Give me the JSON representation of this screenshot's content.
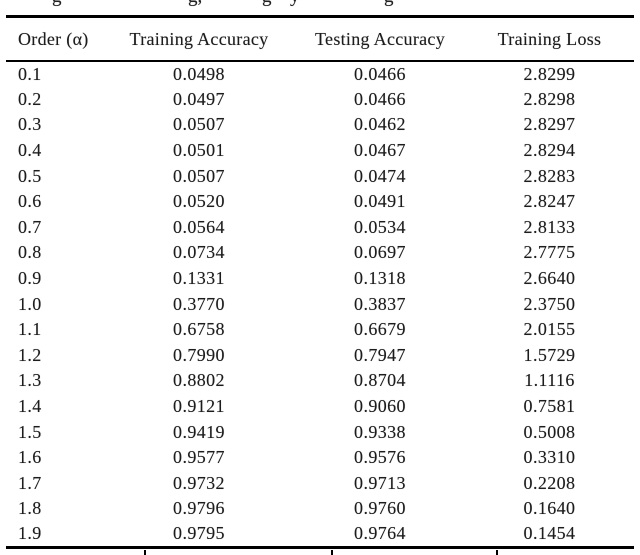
{
  "page": {
    "caption_fragments": [
      "g",
      "g,",
      "g",
      "y",
      "g"
    ]
  },
  "table": {
    "headers": [
      "Order (α)",
      "Training Accuracy",
      "Testing Accuracy",
      "Training Loss"
    ],
    "column_keys": [
      "order",
      "training-accuracy",
      "testing-accuracy",
      "training-loss"
    ],
    "rows": [
      [
        "0.1",
        "0.0498",
        "0.0466",
        "2.8299"
      ],
      [
        "0.2",
        "0.0497",
        "0.0466",
        "2.8298"
      ],
      [
        "0.3",
        "0.0507",
        "0.0462",
        "2.8297"
      ],
      [
        "0.4",
        "0.0501",
        "0.0467",
        "2.8294"
      ],
      [
        "0.5",
        "0.0507",
        "0.0474",
        "2.8283"
      ],
      [
        "0.6",
        "0.0520",
        "0.0491",
        "2.8247"
      ],
      [
        "0.7",
        "0.0564",
        "0.0534",
        "2.8133"
      ],
      [
        "0.8",
        "0.0734",
        "0.0697",
        "2.7775"
      ],
      [
        "0.9",
        "0.1331",
        "0.1318",
        "2.6640"
      ],
      [
        "1.0",
        "0.3770",
        "0.3837",
        "2.3750"
      ],
      [
        "1.1",
        "0.6758",
        "0.6679",
        "2.0155"
      ],
      [
        "1.2",
        "0.7990",
        "0.7947",
        "1.5729"
      ],
      [
        "1.3",
        "0.8802",
        "0.8704",
        "1.1116"
      ],
      [
        "1.4",
        "0.9121",
        "0.9060",
        "0.7581"
      ],
      [
        "1.5",
        "0.9419",
        "0.9338",
        "0.5008"
      ],
      [
        "1.6",
        "0.9577",
        "0.9576",
        "0.3310"
      ],
      [
        "1.7",
        "0.9732",
        "0.9713",
        "0.2208"
      ],
      [
        "1.8",
        "0.9796",
        "0.9760",
        "0.1640"
      ],
      [
        "1.9",
        "0.9795",
        "0.9764",
        "0.1454"
      ]
    ]
  },
  "colors": {
    "background": "#ffffff",
    "text": "#1c1c1c",
    "rule": "#000000"
  }
}
